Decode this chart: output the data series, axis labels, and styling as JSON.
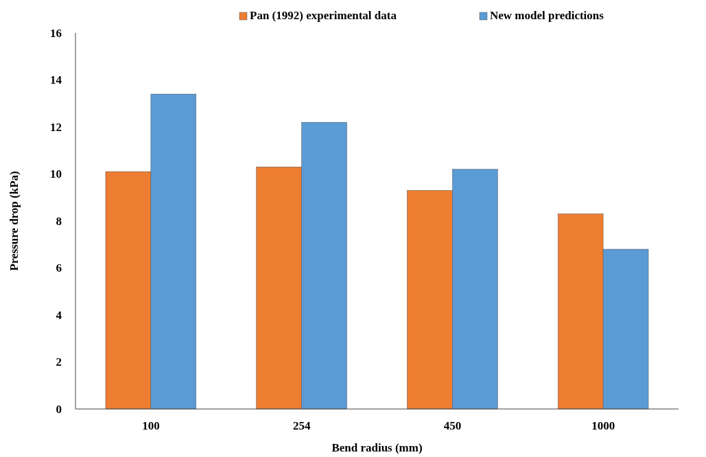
{
  "chart_data": {
    "type": "bar",
    "xlabel": "Bend radius (mm)",
    "ylabel": "Pressure drop (kPa)",
    "categories": [
      "100",
      "254",
      "450",
      "1000"
    ],
    "series": [
      {
        "name": "Pan (1992) experimental data",
        "color": "#ed7d31",
        "values": [
          10.1,
          10.3,
          9.3,
          8.3
        ]
      },
      {
        "name": "New model predictions",
        "color": "#5b9bd5",
        "values": [
          13.4,
          12.2,
          10.2,
          6.8
        ]
      }
    ],
    "ylim": [
      0,
      16
    ],
    "yticks": [
      0,
      2,
      4,
      6,
      8,
      10,
      12,
      14,
      16
    ],
    "legend": "top right"
  }
}
